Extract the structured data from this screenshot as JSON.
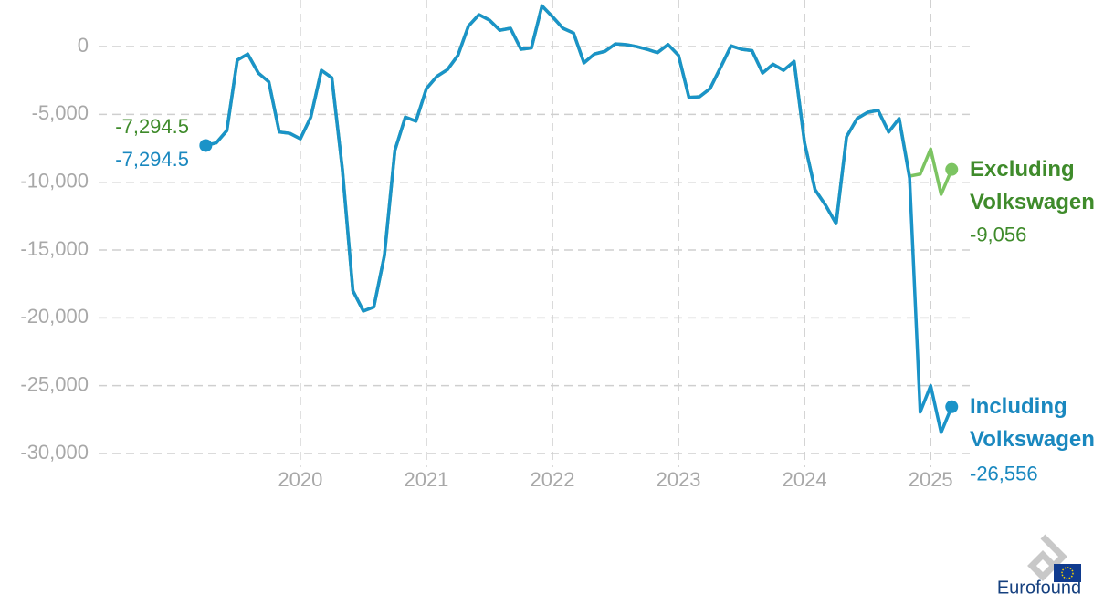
{
  "chart_data": {
    "type": "line",
    "x": [
      2019.25,
      2019.333,
      2019.417,
      2019.5,
      2019.583,
      2019.667,
      2019.75,
      2019.833,
      2019.917,
      2020,
      2020.083,
      2020.167,
      2020.25,
      2020.333,
      2020.417,
      2020.5,
      2020.583,
      2020.667,
      2020.75,
      2020.833,
      2020.917,
      2021,
      2021.083,
      2021.167,
      2021.25,
      2021.333,
      2021.417,
      2021.5,
      2021.583,
      2021.667,
      2021.75,
      2021.833,
      2021.917,
      2022,
      2022.083,
      2022.167,
      2022.25,
      2022.333,
      2022.417,
      2022.5,
      2022.583,
      2022.667,
      2022.75,
      2022.833,
      2022.917,
      2023,
      2023.083,
      2023.167,
      2023.25,
      2023.333,
      2023.417,
      2023.5,
      2023.583,
      2023.667,
      2023.75,
      2023.833,
      2023.917,
      2024,
      2024.083,
      2024.167,
      2024.25,
      2024.333,
      2024.417,
      2024.5,
      2024.583,
      2024.667,
      2024.75,
      2024.833,
      2024.917,
      2025,
      2025.083,
      2025.167
    ],
    "series": [
      {
        "name": "Excluding Volkswagen",
        "color": "#7cc462",
        "label_color": "#3f8b2b",
        "values": [
          -7294.5,
          -7100,
          -6200,
          -1000,
          -550,
          -1950,
          -2600,
          -6300,
          -6400,
          -6800,
          -5200,
          -1750,
          -2300,
          -9000,
          -18000,
          -19500,
          -19200,
          -15400,
          -7650,
          -5200,
          -5500,
          -3100,
          -2200,
          -1700,
          -650,
          1500,
          2350,
          1950,
          1200,
          1350,
          -200,
          -100,
          3000,
          2200,
          1350,
          1000,
          -1200,
          -550,
          -350,
          200,
          150,
          0,
          -200,
          -450,
          150,
          -650,
          -3750,
          -3700,
          -3100,
          -1550,
          50,
          -200,
          -300,
          -1950,
          -1300,
          -1750,
          -1100,
          -7100,
          -10550,
          -11700,
          -13050,
          -6650,
          -5300,
          -4850,
          -4700,
          -6300,
          -5300,
          -9550,
          -9400,
          -7550,
          -10900,
          -9056
        ],
        "value_labels": [
          "-7,294.5",
          null,
          null,
          null,
          null,
          null,
          null,
          null,
          null,
          null,
          null,
          null,
          null,
          null,
          null,
          null,
          null,
          null,
          null,
          null,
          null,
          null,
          null,
          null,
          null,
          null,
          null,
          null,
          null,
          null,
          null,
          null,
          null,
          null,
          null,
          null,
          null,
          null,
          null,
          null,
          null,
          null,
          null,
          null,
          null,
          null,
          null,
          null,
          null,
          null,
          null,
          null,
          null,
          null,
          null,
          null,
          null,
          null,
          null,
          null,
          null,
          null,
          null,
          null,
          null,
          null,
          null,
          null,
          null,
          null,
          null,
          "-9,056"
        ]
      },
      {
        "name": "Including Volkswagen",
        "color": "#1a93c8",
        "label_color": "#1a88bf",
        "values": [
          -7294.5,
          -7100,
          -6200,
          -1000,
          -550,
          -1950,
          -2600,
          -6300,
          -6400,
          -6800,
          -5200,
          -1750,
          -2300,
          -9000,
          -18000,
          -19500,
          -19200,
          -15400,
          -7650,
          -5200,
          -5500,
          -3100,
          -2200,
          -1700,
          -650,
          1500,
          2350,
          1950,
          1200,
          1350,
          -200,
          -100,
          3000,
          2200,
          1350,
          1000,
          -1200,
          -550,
          -350,
          200,
          150,
          0,
          -200,
          -450,
          150,
          -650,
          -3750,
          -3700,
          -3100,
          -1550,
          50,
          -200,
          -300,
          -1950,
          -1300,
          -1750,
          -1100,
          -7100,
          -10550,
          -11700,
          -13050,
          -6650,
          -5300,
          -4850,
          -4700,
          -6300,
          -5300,
          -9700,
          -26950,
          -25000,
          -28450,
          -26556
        ],
        "value_labels": [
          "-7,294.5",
          null,
          null,
          null,
          null,
          null,
          null,
          null,
          null,
          null,
          null,
          null,
          null,
          null,
          null,
          null,
          null,
          null,
          null,
          null,
          null,
          null,
          null,
          null,
          null,
          null,
          null,
          null,
          null,
          null,
          null,
          null,
          null,
          null,
          null,
          null,
          null,
          null,
          null,
          null,
          null,
          null,
          null,
          null,
          null,
          null,
          null,
          null,
          null,
          null,
          null,
          null,
          null,
          null,
          null,
          null,
          null,
          null,
          null,
          null,
          null,
          null,
          null,
          null,
          null,
          null,
          null,
          null,
          null,
          null,
          null,
          "-26,556"
        ]
      }
    ],
    "xlim": [
      2018.4,
      2025.31
    ],
    "xticks": [
      2020,
      2021,
      2022,
      2023,
      2024,
      2025
    ],
    "ylim": [
      -30000,
      3400
    ],
    "yticks": [
      {
        "value": -30000,
        "label": "-30,000"
      },
      {
        "value": -25000,
        "label": "-25,000"
      },
      {
        "value": -20000,
        "label": "-20,000"
      },
      {
        "value": -15000,
        "label": "-15,000"
      },
      {
        "value": -10000,
        "label": "-10,000"
      },
      {
        "value": -5000,
        "label": "-5,000"
      },
      0
    ],
    "grid": true
  },
  "logo": {
    "text": "Eurofound"
  }
}
